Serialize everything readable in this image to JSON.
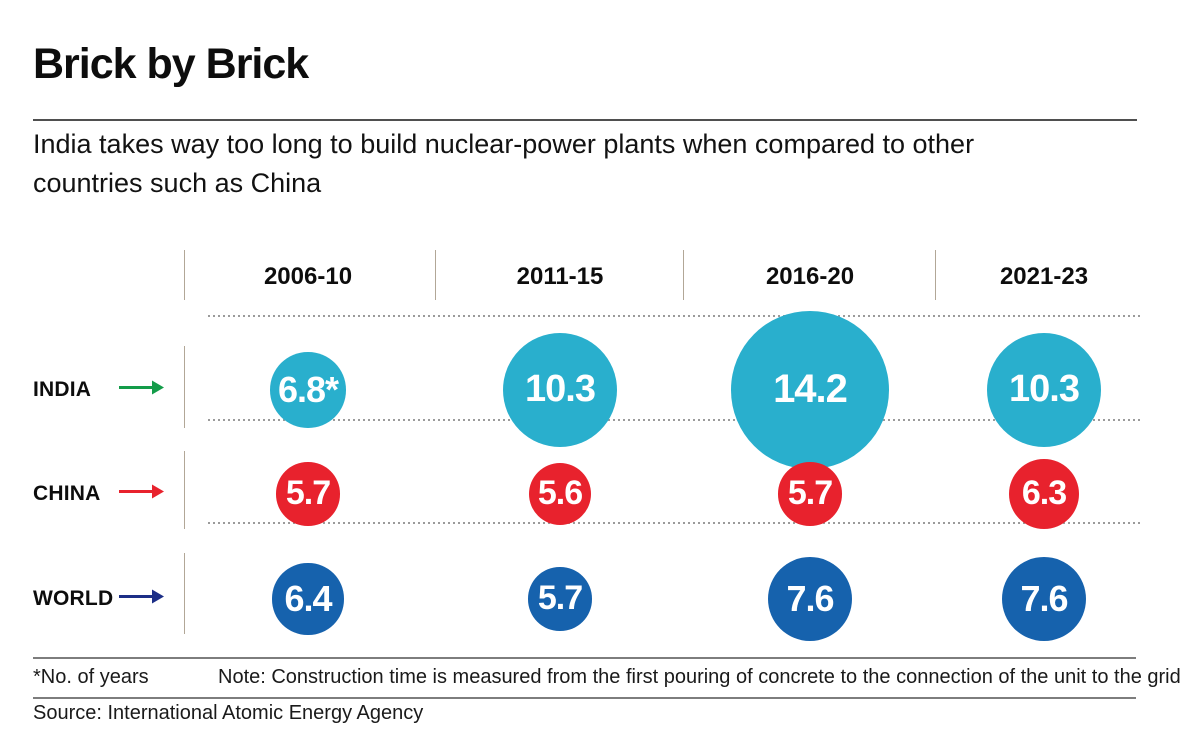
{
  "title": "Brick by Brick",
  "subtitle": {
    "line1": "India takes way too long to build nuclear-power plants when compared to other",
    "line2": "countries such as China"
  },
  "chart_data": {
    "type": "bubble",
    "description": "Average nuclear-power plant construction time in years, bubble size proportional to value",
    "categories": [
      "2006-10",
      "2011-15",
      "2016-20",
      "2021-23"
    ],
    "series": [
      {
        "name": "INDIA",
        "bubble_color": "#29afcd",
        "arrow_color": "#139c49",
        "arrow_icon": "india-arrow-icon",
        "values": [
          6.8,
          10.3,
          14.2,
          10.3
        ],
        "labels": [
          "6.8*",
          "10.3",
          "14.2",
          "10.3"
        ]
      },
      {
        "name": "CHINA",
        "bubble_color": "#e8222d",
        "arrow_color": "#e8222d",
        "arrow_icon": "china-arrow-icon",
        "values": [
          5.7,
          5.6,
          5.7,
          6.3
        ],
        "labels": [
          "5.7",
          "5.6",
          "5.7",
          "6.3"
        ]
      },
      {
        "name": "WORLD",
        "bubble_color": "#1662ad",
        "arrow_color": "#1c2e87",
        "arrow_icon": "world-arrow-icon",
        "values": [
          6.4,
          5.7,
          7.6,
          7.6
        ],
        "labels": [
          "6.4",
          "5.7",
          "7.6",
          "7.6"
        ]
      }
    ],
    "value_unit": "years",
    "legend_position": "none",
    "grid": "dotted-row-separators"
  },
  "footnotes": {
    "asterisk": "*No. of years",
    "note": "Note: Construction time is measured from the first pouring of concrete to the connection of the unit to the grid"
  },
  "source": "Source: International Atomic Energy Agency"
}
